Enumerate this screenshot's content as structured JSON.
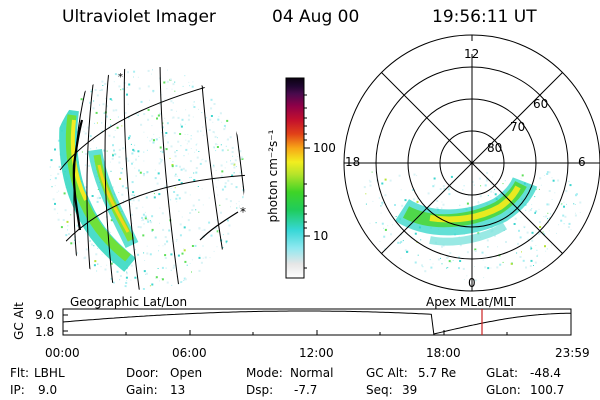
{
  "header": {
    "instrument": "Ultraviolet Imager",
    "date": "04 Aug 00",
    "time": "19:56:11 UT"
  },
  "colorbar": {
    "unit_label": "photon cm⁻²s⁻¹",
    "ticks": [
      "100",
      "10"
    ],
    "scale": "log",
    "colors": [
      "#ffffff",
      "#e6e6e6",
      "#8fe8f0",
      "#36d7d6",
      "#1fcc5c",
      "#3fd427",
      "#b8e42a",
      "#f2ee1f",
      "#f7a617",
      "#e14218",
      "#c4102d",
      "#8f0048",
      "#4a0a4d",
      "#1f0630",
      "#0b0210"
    ]
  },
  "geo_image": {
    "label": "Geographic Lat/Lon",
    "icons": [
      "star-icon",
      "star-icon"
    ]
  },
  "polar_image": {
    "label": "Apex MLat/MLT",
    "mlt_labels": [
      "12",
      "18",
      "6",
      "0"
    ],
    "mlat_labels": [
      "60",
      "70",
      "80"
    ]
  },
  "altitude_plot": {
    "ylabel": "GC Alt",
    "yticks": [
      "9.0",
      "1.8"
    ],
    "xticks": [
      "00:00",
      "06:00",
      "12:00",
      "18:00",
      "23:59"
    ],
    "current_time_marker_color": "#cc2222"
  },
  "status": {
    "flt_label": "Flt:",
    "flt_value": "LBHL",
    "ip_label": "IP:",
    "ip_value": "9.0",
    "door_label": "Door:",
    "door_value": "Open",
    "gain_label": "Gain:",
    "gain_value": "13",
    "mode_label": "Mode:",
    "mode_value": "Normal",
    "dsp_label": "Dsp:",
    "dsp_value": "-7.7",
    "gcalt_label": "GC Alt:",
    "gcalt_value": "5.7 Re",
    "seq_label": "Seq:",
    "seq_value": "39",
    "glat_label": "GLat:",
    "glat_value": "-48.4",
    "glon_label": "GLon:",
    "glon_value": "100.7"
  }
}
